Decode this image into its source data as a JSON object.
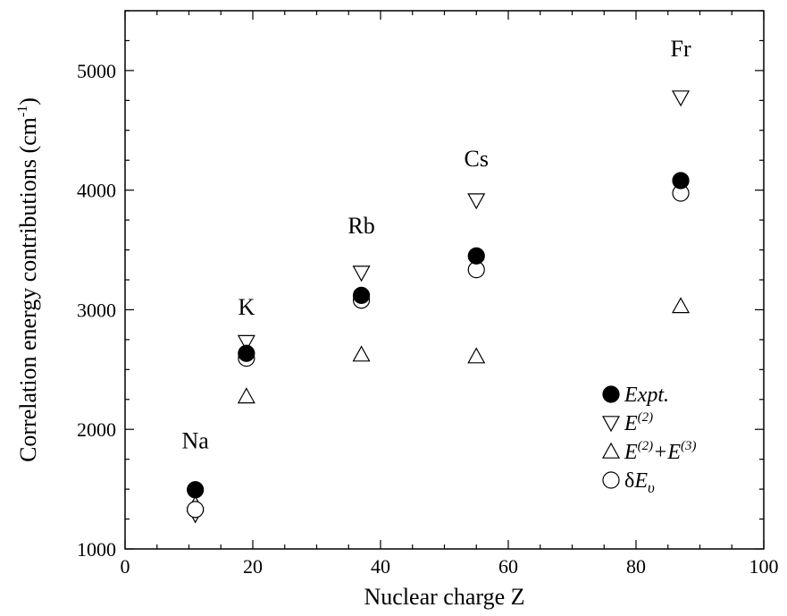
{
  "chart_data": {
    "type": "scatter",
    "xlabel": "Nuclear charge Z",
    "ylabel": "Correlation energy contributions (cm",
    "ylabel_sup": "-1",
    "ylabel_close": ")",
    "xlim": [
      0,
      100
    ],
    "ylim": [
      1000,
      5500
    ],
    "xticks": [
      0,
      20,
      40,
      60,
      80,
      100
    ],
    "yticks": [
      1000,
      2000,
      3000,
      4000,
      5000
    ],
    "x_minor_step": 5,
    "y_minor_step": 250,
    "grid": false,
    "legend_position": "bottom-right",
    "series": [
      {
        "name": "Expt.",
        "marker": "filled-circle",
        "x": [
          11,
          19,
          37,
          55,
          87
        ],
        "y": [
          1495,
          2635,
          3120,
          3450,
          4080
        ]
      },
      {
        "name": "E(2)",
        "marker": "open-triangle-down",
        "x": [
          11,
          19,
          37,
          55,
          87
        ],
        "y": [
          1290,
          2730,
          3310,
          3915,
          4775
        ]
      },
      {
        "name": "E(2)+E(3)",
        "marker": "open-triangle-up",
        "x": [
          11,
          19,
          37,
          55,
          87
        ],
        "y": [
          1370,
          2275,
          2625,
          2610,
          3030
        ]
      },
      {
        "name": "δEυ",
        "marker": "open-circle",
        "x": [
          11,
          19,
          37,
          55,
          87
        ],
        "y": [
          1330,
          2595,
          3080,
          3335,
          3975
        ]
      }
    ],
    "annotations": [
      {
        "text": "Na",
        "x": 11,
        "y": 1840
      },
      {
        "text": "K",
        "x": 19,
        "y": 2960
      },
      {
        "text": "Rb",
        "x": 37,
        "y": 3640
      },
      {
        "text": "Cs",
        "x": 55,
        "y": 4200
      },
      {
        "text": "Fr",
        "x": 87,
        "y": 5120
      }
    ],
    "legend": [
      {
        "base": "Expt.",
        "parts": [
          {
            "t": "Expt.",
            "sup": false
          }
        ]
      },
      {
        "base": "E(2)",
        "parts": [
          {
            "t": "E",
            "sup": false
          },
          {
            "t": "(2)",
            "sup": true
          }
        ]
      },
      {
        "base": "E(2)+E(3)",
        "parts": [
          {
            "t": "E",
            "sup": false
          },
          {
            "t": "(2)",
            "sup": true
          },
          {
            "t": "+E",
            "sup": false
          },
          {
            "t": "(3)",
            "sup": true
          }
        ]
      },
      {
        "base": "δEυ",
        "parts": [
          {
            "t": "δ",
            "sup": false,
            "upright": true
          },
          {
            "t": "E",
            "sup": false
          },
          {
            "t": "υ",
            "sub": true
          }
        ]
      }
    ]
  }
}
